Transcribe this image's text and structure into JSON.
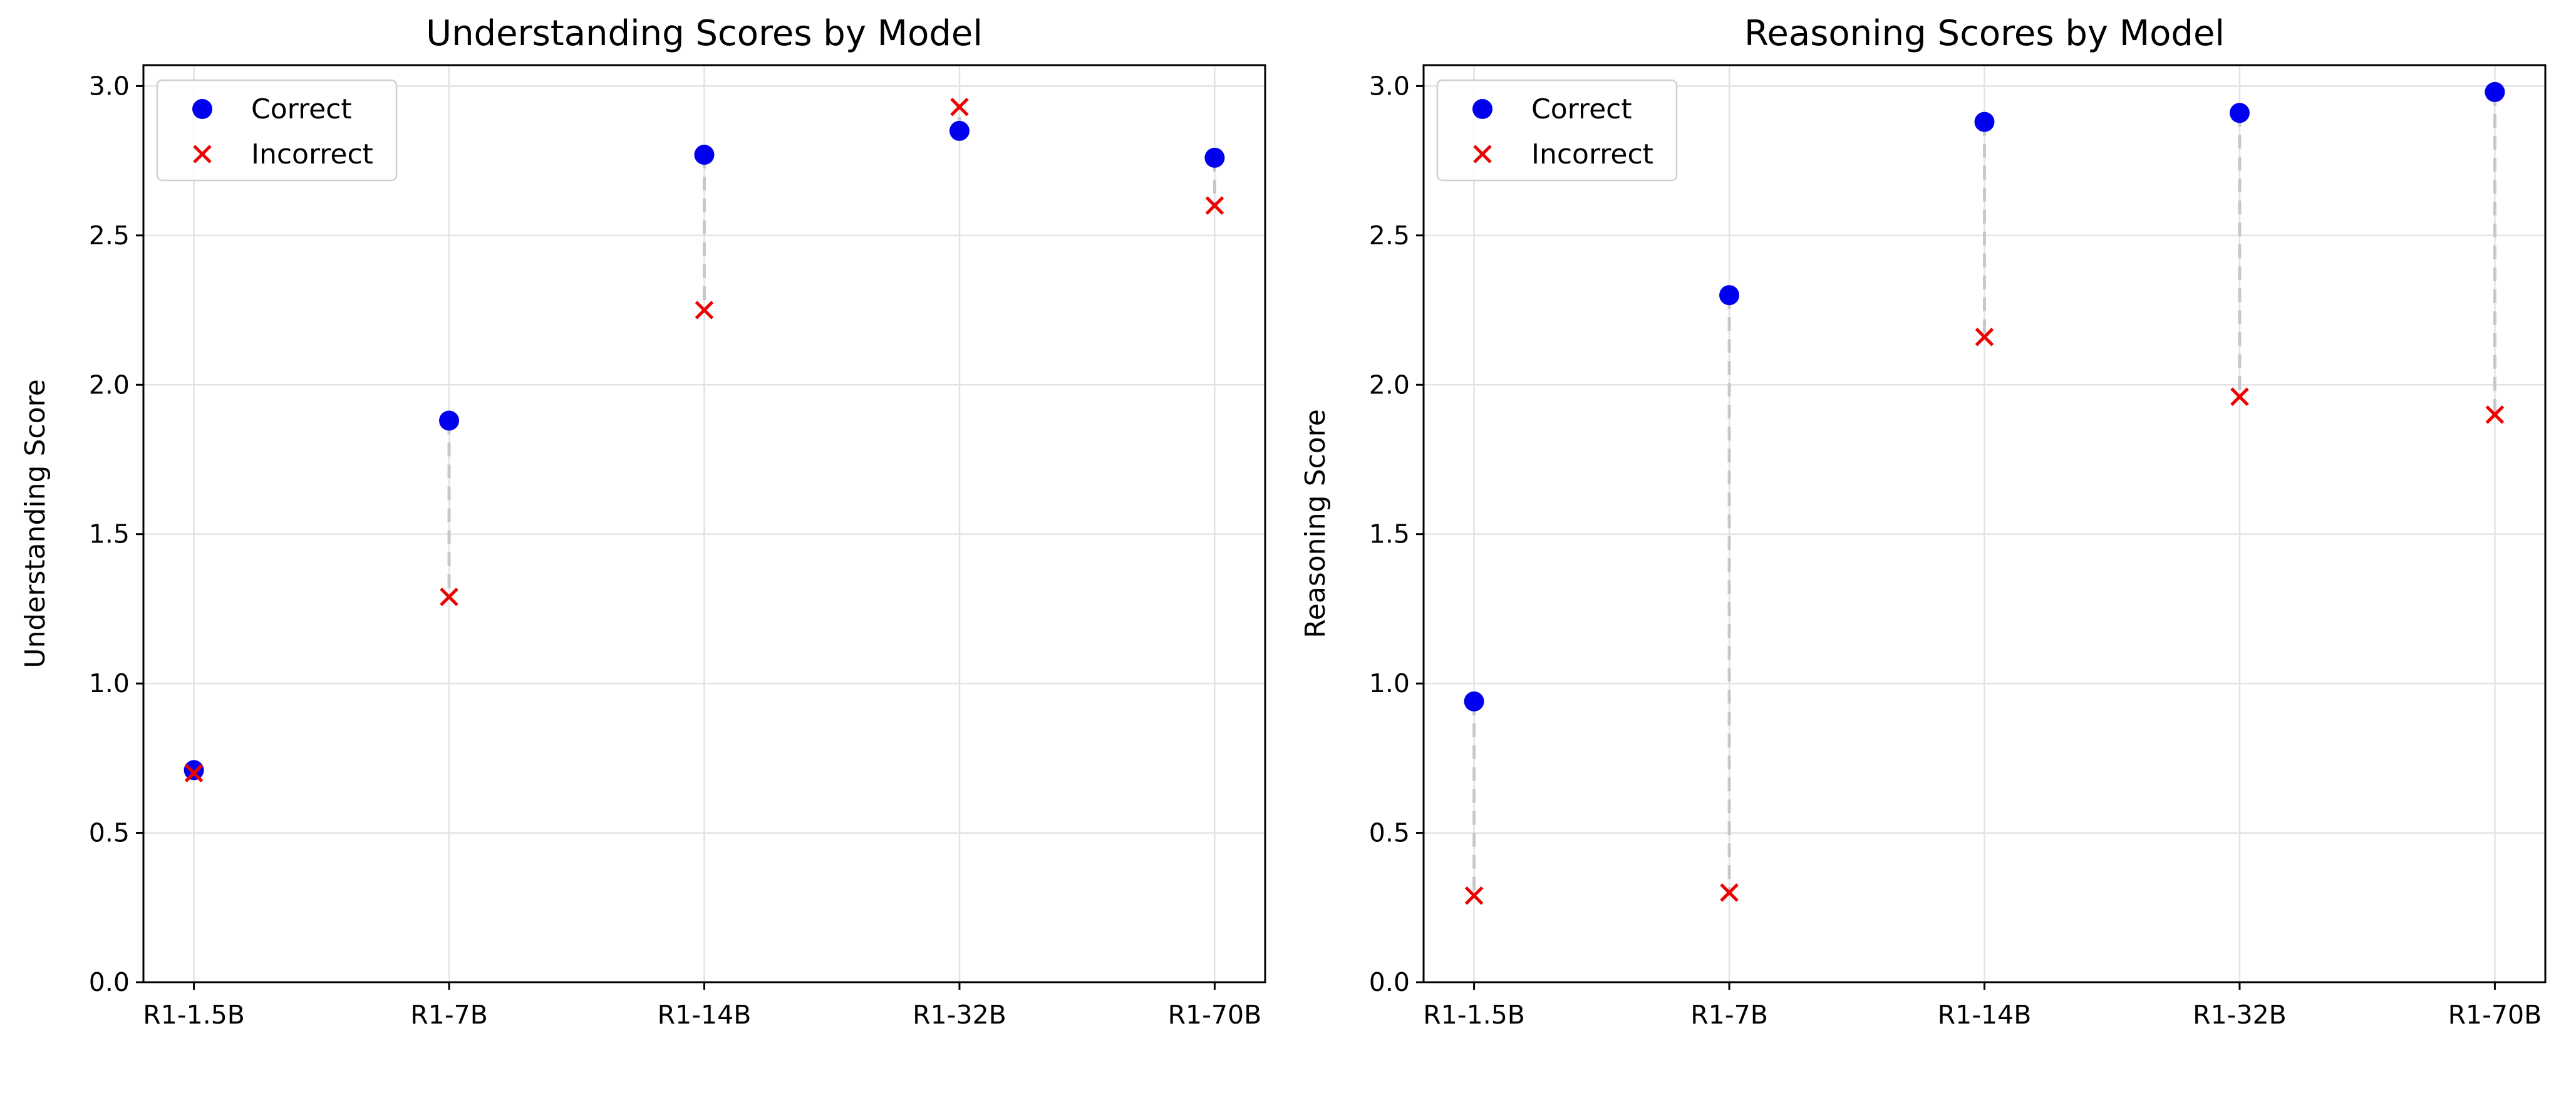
{
  "colors": {
    "correct": "#0000ee",
    "incorrect": "#ee0000",
    "connector": "#c8c8c8",
    "grid": "#e3e3e3"
  },
  "chart_data": [
    {
      "type": "scatter",
      "title": "Understanding Scores by Model",
      "xlabel": "",
      "ylabel": "Understanding Score",
      "categories": [
        "R1-1.5B",
        "R1-7B",
        "R1-14B",
        "R1-32B",
        "R1-70B"
      ],
      "ylim": [
        0,
        3.07
      ],
      "yticks": [
        "0.0",
        "0.5",
        "1.0",
        "1.5",
        "2.0",
        "2.5",
        "3.0"
      ],
      "grid": true,
      "legend": "top-left",
      "series": [
        {
          "name": "Correct",
          "marker": "circle",
          "values": [
            0.71,
            1.88,
            2.77,
            2.85,
            2.76
          ]
        },
        {
          "name": "Incorrect",
          "marker": "x",
          "values": [
            0.7,
            1.29,
            2.25,
            2.93,
            2.6
          ]
        }
      ]
    },
    {
      "type": "scatter",
      "title": "Reasoning Scores by Model",
      "xlabel": "",
      "ylabel": "Reasoning Score",
      "categories": [
        "R1-1.5B",
        "R1-7B",
        "R1-14B",
        "R1-32B",
        "R1-70B"
      ],
      "ylim": [
        0,
        3.07
      ],
      "yticks": [
        "0.0",
        "0.5",
        "1.0",
        "1.5",
        "2.0",
        "2.5",
        "3.0"
      ],
      "grid": true,
      "legend": "top-left",
      "series": [
        {
          "name": "Correct",
          "marker": "circle",
          "values": [
            0.94,
            2.3,
            2.88,
            2.91,
            2.98
          ]
        },
        {
          "name": "Incorrect",
          "marker": "x",
          "values": [
            0.29,
            0.3,
            2.16,
            1.96,
            1.9
          ]
        }
      ]
    }
  ]
}
